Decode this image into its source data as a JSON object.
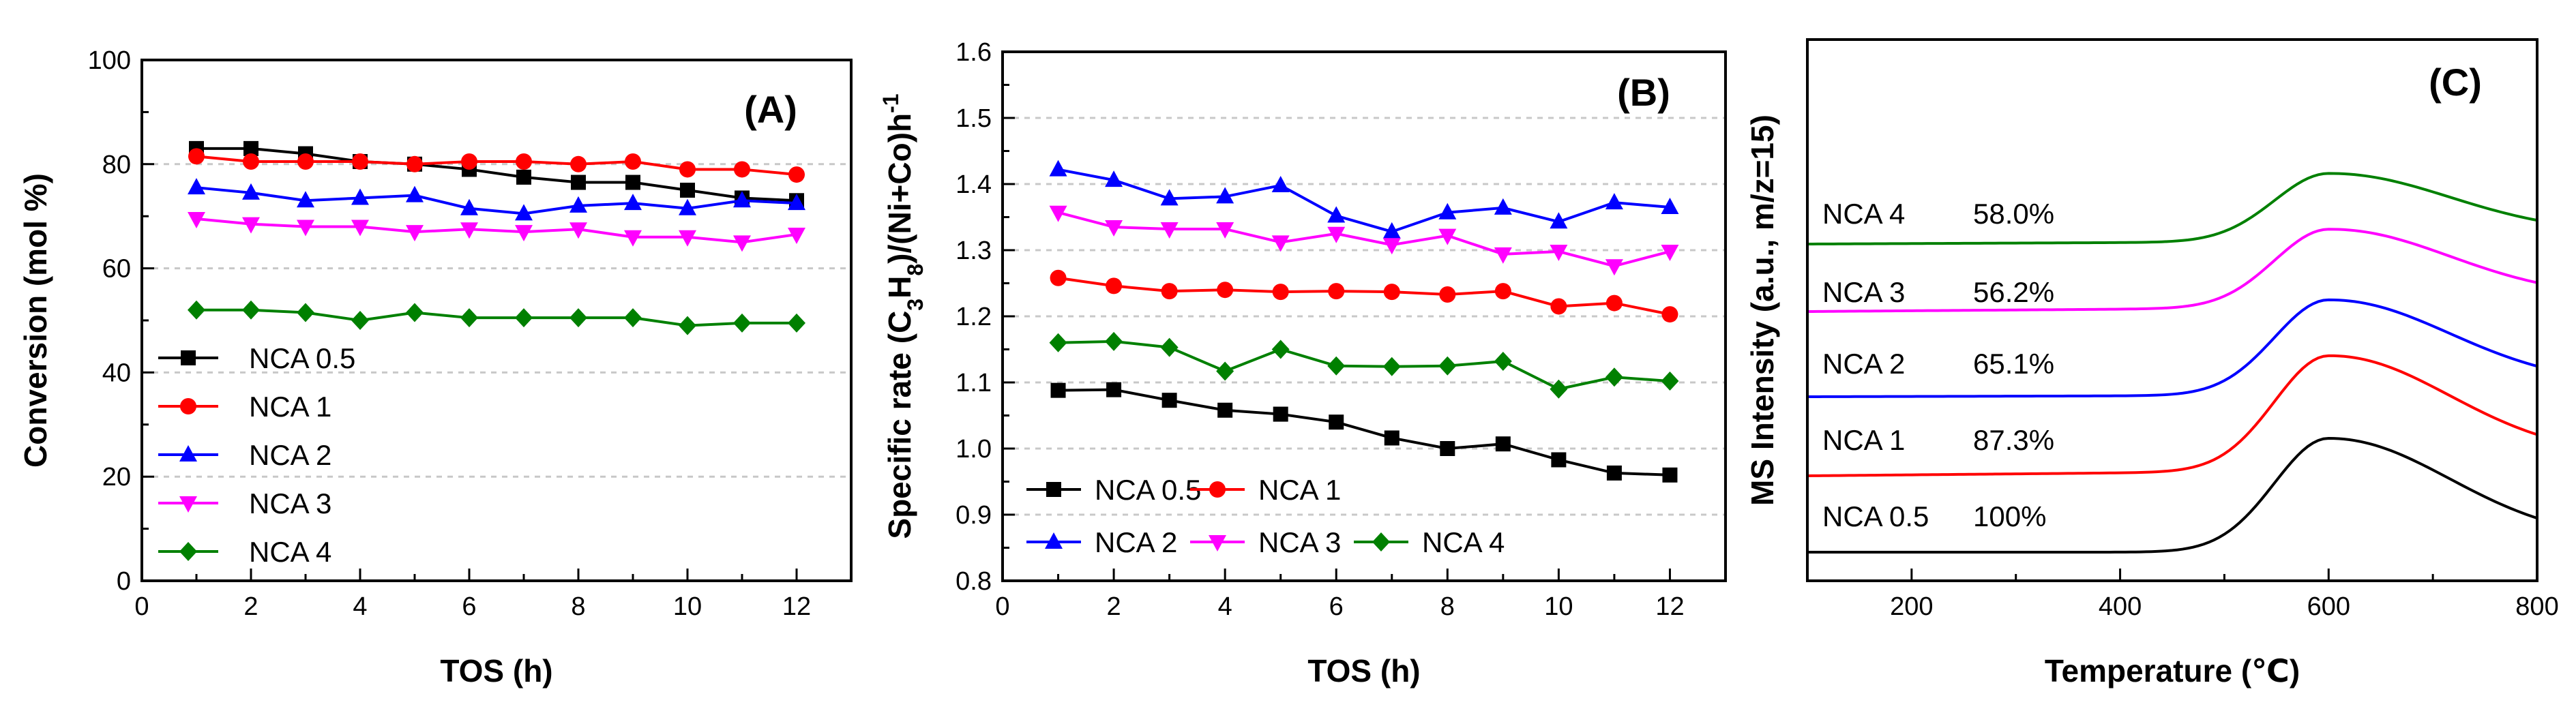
{
  "chart_data": [
    {
      "type": "line",
      "panel": "(A)",
      "xlabel": "TOS (h)",
      "ylabel": "Conversion (mol %)",
      "xlim": [
        0,
        13
      ],
      "ylim": [
        0,
        100
      ],
      "xticks": [
        0,
        2,
        4,
        6,
        8,
        10,
        12
      ],
      "yticks": [
        0,
        20,
        40,
        60,
        80,
        100
      ],
      "grid": "dashed horizontal",
      "legend_position": "bottom-left",
      "x": [
        1,
        2,
        3,
        4,
        5,
        6,
        7,
        8,
        9,
        10,
        11,
        12
      ],
      "series": [
        {
          "name": "NCA 0.5",
          "color": "#000000",
          "marker": "square",
          "values": [
            83,
            83,
            82,
            80.5,
            80,
            79,
            77.5,
            76.5,
            76.5,
            75,
            73.5,
            73
          ]
        },
        {
          "name": "NCA 1",
          "color": "#ff0000",
          "marker": "circle",
          "values": [
            81.5,
            80.5,
            80.5,
            80.5,
            80,
            80.5,
            80.5,
            80,
            80.5,
            79,
            79,
            78
          ]
        },
        {
          "name": "NCA 2",
          "color": "#0000ff",
          "marker": "triangle-up",
          "values": [
            75.5,
            74.5,
            73,
            73.5,
            74,
            71.5,
            70.5,
            72,
            72.5,
            71.5,
            73,
            72.5
          ]
        },
        {
          "name": "NCA 3",
          "color": "#ff00ff",
          "marker": "triangle-down",
          "values": [
            69.5,
            68.5,
            68,
            68,
            67,
            67.5,
            67,
            67.5,
            66,
            66,
            65,
            66.5
          ]
        },
        {
          "name": "NCA 4",
          "color": "#008000",
          "marker": "diamond",
          "values": [
            52,
            52,
            51.5,
            50,
            51.5,
            50.5,
            50.5,
            50.5,
            50.5,
            49,
            49.5,
            49.5
          ]
        }
      ]
    },
    {
      "type": "line",
      "panel": "(B)",
      "xlabel": "TOS (h)",
      "ylabel_parts": [
        "Specific rate (C",
        "3",
        "H",
        "8",
        ")/(Ni+Co)h",
        "-1"
      ],
      "xlim": [
        0,
        13
      ],
      "ylim": [
        0.8,
        1.6
      ],
      "xticks": [
        0,
        2,
        4,
        6,
        8,
        10,
        12
      ],
      "yticks": [
        "0.8",
        "0.9",
        "1.0",
        "1.1",
        "1.2",
        "1.3",
        "1.4",
        "1.5",
        "1.6"
      ],
      "grid": "dashed horizontal",
      "legend_position": "bottom-left",
      "x": [
        1,
        2,
        3,
        4,
        5,
        6,
        7,
        8,
        9,
        10,
        11,
        12
      ],
      "series": [
        {
          "name": "NCA 0.5",
          "color": "#000000",
          "marker": "square",
          "values": [
            1.088,
            1.089,
            1.073,
            1.058,
            1.052,
            1.04,
            1.016,
            1.0,
            1.007,
            0.983,
            0.963,
            0.96
          ]
        },
        {
          "name": "NCA 1",
          "color": "#ff0000",
          "marker": "circle",
          "values": [
            1.258,
            1.246,
            1.238,
            1.24,
            1.237,
            1.238,
            1.237,
            1.233,
            1.238,
            1.215,
            1.22,
            1.203
          ]
        },
        {
          "name": "NCA 2",
          "color": "#0000ff",
          "marker": "triangle-up",
          "values": [
            1.422,
            1.406,
            1.378,
            1.381,
            1.398,
            1.352,
            1.328,
            1.357,
            1.364,
            1.343,
            1.372,
            1.365
          ]
        },
        {
          "name": "NCA 3",
          "color": "#ff00ff",
          "marker": "triangle-down",
          "values": [
            1.357,
            1.335,
            1.332,
            1.332,
            1.312,
            1.325,
            1.308,
            1.322,
            1.294,
            1.298,
            1.276,
            1.298
          ]
        },
        {
          "name": "NCA 4",
          "color": "#008000",
          "marker": "diamond",
          "values": [
            1.16,
            1.162,
            1.153,
            1.117,
            1.15,
            1.125,
            1.124,
            1.125,
            1.132,
            1.09,
            1.108,
            1.102
          ]
        }
      ]
    },
    {
      "type": "line",
      "panel": "(C)",
      "xlabel": "Temperature (℃)",
      "ylabel": "MS Intensity (a.u., m/z=15)",
      "xlim": [
        100,
        800
      ],
      "xticks": [
        200,
        400,
        600,
        800
      ],
      "y_axis": "arbitrary units, traces vertically offset, no tick labels",
      "grid": "none",
      "peak_temperature": 600,
      "series": [
        {
          "name": "NCA 0.5",
          "percent": "100%",
          "color": "#000000"
        },
        {
          "name": "NCA 1",
          "percent": "87.3%",
          "color": "#ff0000"
        },
        {
          "name": "NCA 2",
          "percent": "65.1%",
          "color": "#0000ff"
        },
        {
          "name": "NCA 3",
          "percent": "56.2%",
          "color": "#ff00ff"
        },
        {
          "name": "NCA 4",
          "percent": "58.0%",
          "color": "#008000"
        }
      ]
    }
  ]
}
